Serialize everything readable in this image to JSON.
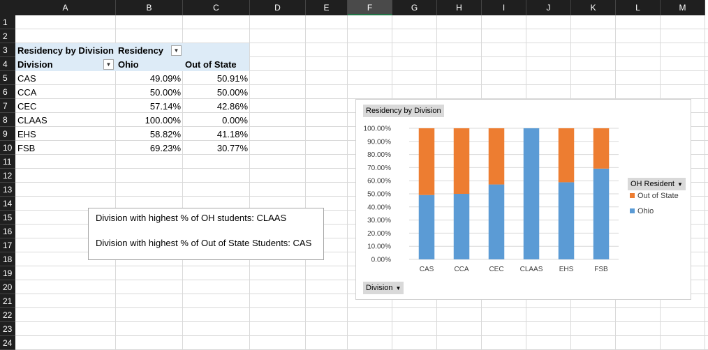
{
  "columns": [
    "A",
    "B",
    "C",
    "D",
    "E",
    "F",
    "G",
    "H",
    "I",
    "J",
    "K",
    "L",
    "M"
  ],
  "selected_column": "F",
  "rows": [
    "1",
    "2",
    "3",
    "4",
    "5",
    "6",
    "7",
    "8",
    "9",
    "10",
    "11",
    "12",
    "13",
    "14",
    "15",
    "16",
    "17",
    "18",
    "19",
    "20",
    "21",
    "22",
    "23",
    "24"
  ],
  "pivot": {
    "title": "Residency by Division",
    "col_field": "Residency",
    "row_field": "Division",
    "col_headers": [
      "Ohio",
      "Out of State"
    ],
    "rows": [
      {
        "division": "CAS",
        "ohio": "49.09%",
        "out": "50.91%"
      },
      {
        "division": "CCA",
        "ohio": "50.00%",
        "out": "50.00%"
      },
      {
        "division": "CEC",
        "ohio": "57.14%",
        "out": "42.86%"
      },
      {
        "division": "CLAAS",
        "ohio": "100.00%",
        "out": "0.00%"
      },
      {
        "division": "EHS",
        "ohio": "58.82%",
        "out": "41.18%"
      },
      {
        "division": "FSB",
        "ohio": "69.23%",
        "out": "30.77%"
      }
    ]
  },
  "textbox": {
    "line1": "Division with highest % of OH students: CLAAS",
    "line2": "Division with highest % of Out of State Students: CAS"
  },
  "chart_data": {
    "type": "bar",
    "stacked": true,
    "title": "Residency by Division",
    "categories": [
      "CAS",
      "CCA",
      "CEC",
      "CLAAS",
      "EHS",
      "FSB"
    ],
    "series": [
      {
        "name": "Ohio",
        "color": "#5b9bd5",
        "values": [
          49.09,
          50.0,
          57.14,
          100.0,
          58.82,
          69.23
        ]
      },
      {
        "name": "Out of State",
        "color": "#ed7d31",
        "values": [
          50.91,
          50.0,
          42.86,
          0.0,
          41.18,
          30.77
        ]
      }
    ],
    "ylim": [
      0,
      100
    ],
    "yticks": [
      "0.00%",
      "10.00%",
      "20.00%",
      "30.00%",
      "40.00%",
      "50.00%",
      "60.00%",
      "70.00%",
      "80.00%",
      "90.00%",
      "100.00%"
    ],
    "legend_title": "OH Resident",
    "legend_position": "right",
    "axis_field_button": "Division",
    "grid": true
  }
}
